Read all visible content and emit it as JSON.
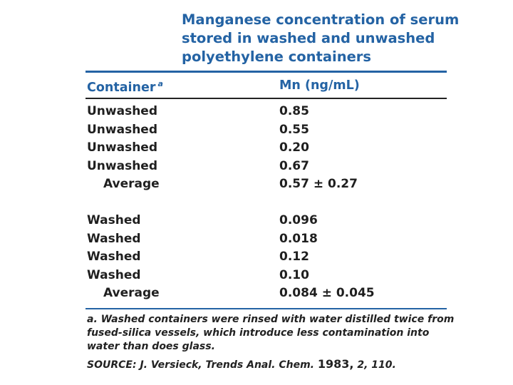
{
  "title_lines": [
    "Manganese concentration of serum",
    "stored in washed and unwashed",
    "polyethylene containers"
  ],
  "table": {
    "header": {
      "container": "Container",
      "container_note": "a",
      "value": "Mn (ng/mL)"
    },
    "groups": [
      {
        "rows": [
          [
            "Unwashed",
            "0.85"
          ],
          [
            "Unwashed",
            "0.55"
          ],
          [
            "Unwashed",
            "0.20"
          ],
          [
            "Unwashed",
            "0.67"
          ]
        ],
        "average": [
          "Average",
          "0.57 ± 0.27"
        ]
      },
      {
        "rows": [
          [
            "Washed",
            "0.096"
          ],
          [
            "Washed",
            "0.018"
          ],
          [
            "Washed",
            "0.12"
          ],
          [
            "Washed",
            "0.10"
          ]
        ],
        "average": [
          "Average",
          "0.084 ± 0.045"
        ]
      }
    ]
  },
  "footnote": {
    "marker": "a.",
    "lines": [
      "Washed containers were rinsed with water distilled twice from",
      "fused-silica vessels, which introduce less contamination into",
      "water than does glass."
    ]
  },
  "source": {
    "label": "SOURCE:",
    "reference": "J. Versieck, Trends Anal. Chem.",
    "year": "1983,",
    "rest": "2, 110."
  }
}
